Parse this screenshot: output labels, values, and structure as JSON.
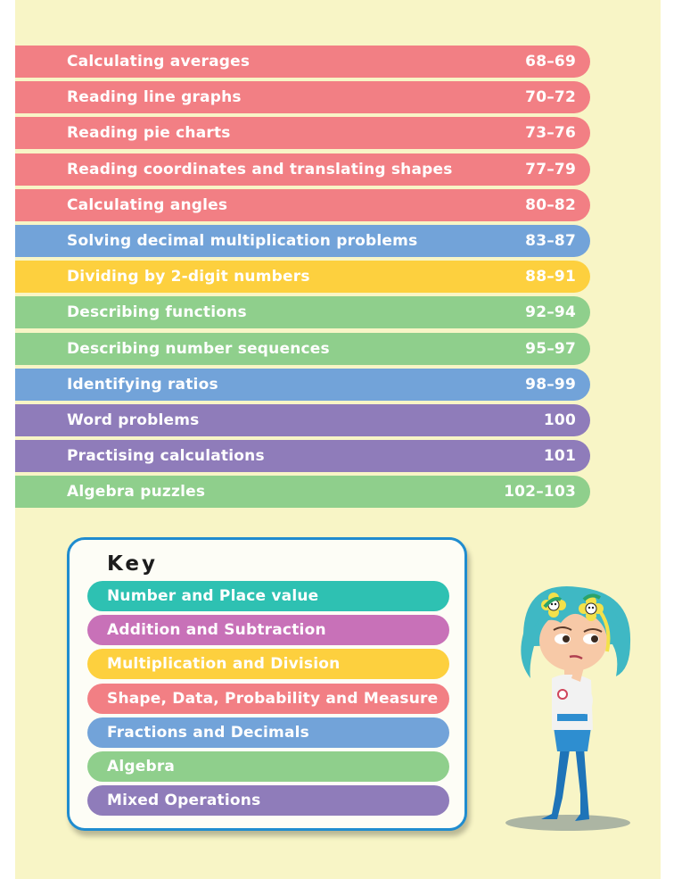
{
  "toc": [
    {
      "title": "Calculating averages",
      "pages": "68–69",
      "color": "#f27f84"
    },
    {
      "title": "Reading line graphs",
      "pages": "70–72",
      "color": "#f27f84"
    },
    {
      "title": "Reading pie charts",
      "pages": "73–76",
      "color": "#f27f84"
    },
    {
      "title": "Reading coordinates and translating shapes",
      "pages": "77–79",
      "color": "#f27f84"
    },
    {
      "title": "Calculating angles",
      "pages": "80–82",
      "color": "#f27f84"
    },
    {
      "title": "Solving decimal multiplication problems",
      "pages": "83–87",
      "color": "#72a3d9"
    },
    {
      "title": "Dividing by 2-digit numbers",
      "pages": "88–91",
      "color": "#fdd03e"
    },
    {
      "title": "Describing functions",
      "pages": "92–94",
      "color": "#8fcf8c"
    },
    {
      "title": "Describing number sequences",
      "pages": "95–97",
      "color": "#8fcf8c"
    },
    {
      "title": "Identifying ratios",
      "pages": "98–99",
      "color": "#72a3d9"
    },
    {
      "title": "Word problems",
      "pages": "100",
      "color": "#8f7cba"
    },
    {
      "title": "Practising calculations",
      "pages": "101",
      "color": "#8f7cba"
    },
    {
      "title": "Algebra puzzles",
      "pages": "102–103",
      "color": "#8fcf8c"
    }
  ],
  "key": {
    "title": "Key",
    "items": [
      {
        "label": "Number and Place value",
        "color": "#2ec1b2"
      },
      {
        "label": "Addition and Subtraction",
        "color": "#c871b8"
      },
      {
        "label": "Multiplication and Division",
        "color": "#fdd03e"
      },
      {
        "label": "Shape, Data, Probability and Measure",
        "color": "#f27f84"
      },
      {
        "label": "Fractions and Decimals",
        "color": "#72a3d9"
      },
      {
        "label": "Algebra",
        "color": "#8fcf8c"
      },
      {
        "label": "Mixed Operations",
        "color": "#8f7cba"
      }
    ]
  },
  "colors": {
    "background": "#f8f5c6",
    "key_border": "#1f8ccf",
    "character_hair": "#3fb8c4"
  },
  "character": {
    "icon": "girl-with-flowers-character"
  }
}
